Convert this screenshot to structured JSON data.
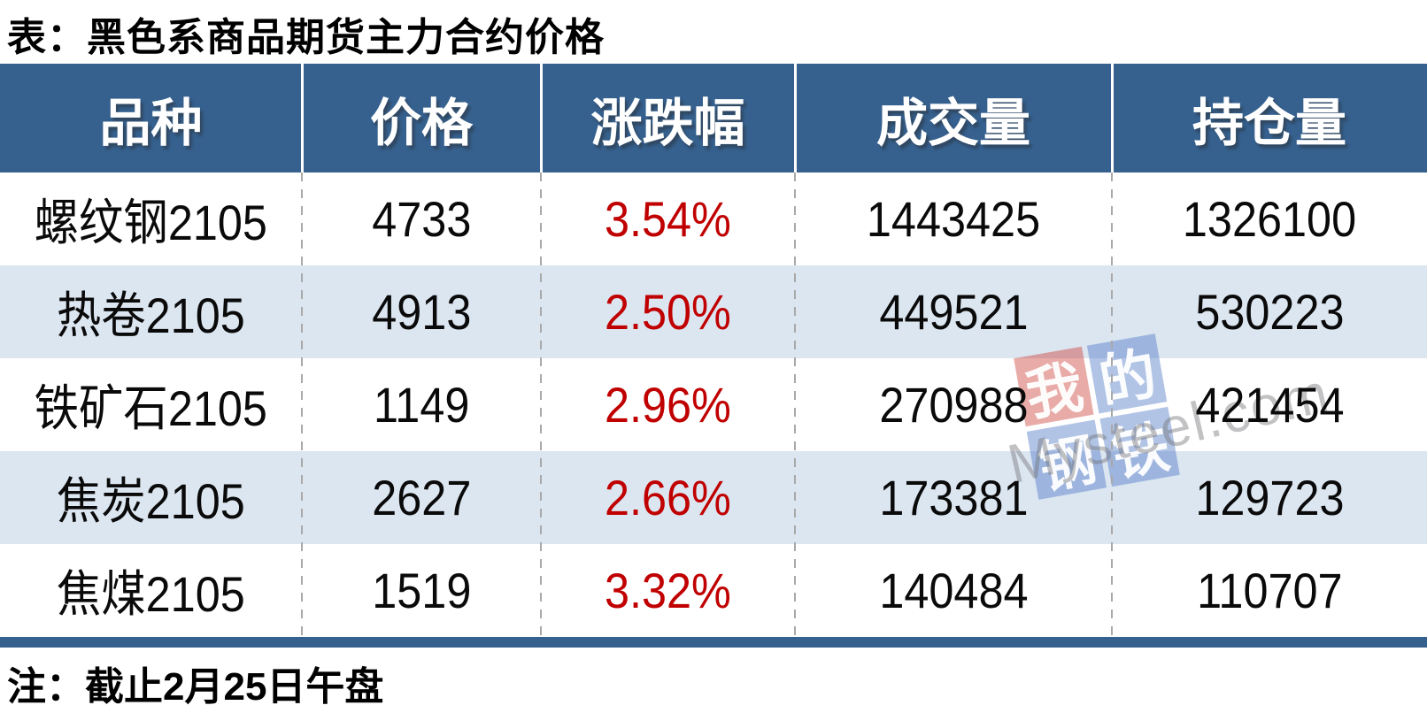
{
  "title": "表：黑色系商品期货主力合约价格",
  "note": "注：截止2月25日午盘",
  "table": {
    "columns": [
      "品种",
      "价格",
      "涨跌幅",
      "成交量",
      "持仓量"
    ],
    "rows": [
      {
        "name": "螺纹钢2105",
        "price": "4733",
        "change": "3.54%",
        "volume": "1443425",
        "open_interest": "1326100"
      },
      {
        "name": "热卷2105",
        "price": "4913",
        "change": "2.50%",
        "volume": "449521",
        "open_interest": "530223"
      },
      {
        "name": "铁矿石2105",
        "price": "1149",
        "change": "2.96%",
        "volume": "270988",
        "open_interest": "421454"
      },
      {
        "name": "焦炭2105",
        "price": "2627",
        "change": "2.66%",
        "volume": "173381",
        "open_interest": "129723"
      },
      {
        "name": "焦煤2105",
        "price": "1519",
        "change": "3.32%",
        "volume": "140484",
        "open_interest": "110707"
      }
    ]
  },
  "watermark": {
    "tiles": [
      "我",
      "的",
      "钢",
      "铁"
    ],
    "brand": "Mysteel.com"
  },
  "colors": {
    "header_bg": "#36618f",
    "row_alt_bg": "#dce6f1",
    "change_red": "#c00000",
    "bottom_bar": "#36618f",
    "watermark_red": "rgba(200,55,45,0.42)",
    "watermark_blue": "rgba(68,114,196,0.42)"
  },
  "chart_data": {
    "type": "table",
    "title": "表：黑色系商品期货主力合约价格",
    "columns": [
      "品种",
      "价格",
      "涨跌幅",
      "成交量",
      "持仓量"
    ],
    "rows": [
      [
        "螺纹钢2105",
        4733,
        "3.54%",
        1443425,
        1326100
      ],
      [
        "热卷2105",
        4913,
        "2.50%",
        449521,
        530223
      ],
      [
        "铁矿石2105",
        1149,
        "2.96%",
        270988,
        421454
      ],
      [
        "焦炭2105",
        2627,
        "2.66%",
        173381,
        129723
      ],
      [
        "焦煤2105",
        1519,
        "3.32%",
        140484,
        110707
      ]
    ],
    "note": "注：截止2月25日午盘"
  }
}
